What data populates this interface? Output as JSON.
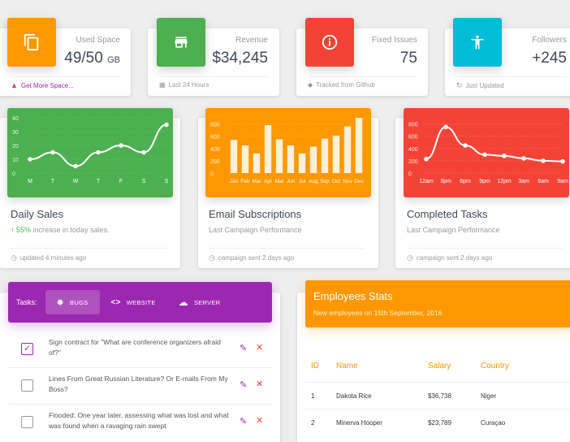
{
  "stats": [
    {
      "category": "Used Space",
      "value": "49/50",
      "unit": "GB",
      "footer": "Get More Space...",
      "footer_icon": "warning-icon",
      "color": "#ff9800"
    },
    {
      "category": "Revenue",
      "value": "$34,245",
      "footer": "Last 24 Hours",
      "footer_icon": "calendar-icon",
      "color": "#4caf50"
    },
    {
      "category": "Fixed Issues",
      "value": "75",
      "footer": "Tracked from Github",
      "footer_icon": "tag-icon",
      "color": "#f44336"
    },
    {
      "category": "Followers",
      "value": "+245",
      "footer": "Just Updated",
      "footer_icon": "refresh-icon",
      "color": "#00bcd4"
    }
  ],
  "charts": {
    "daily": {
      "title": "Daily Sales",
      "increase": "55%",
      "increase_text": " increase in today sales.",
      "footer": "updated 4 minutes ago",
      "color": "#4caf50"
    },
    "email": {
      "title": "Email Subscriptions",
      "category": "Last Campaign Performance",
      "footer": "campaign sent 2 days ago",
      "color": "#ff9800"
    },
    "tasks": {
      "title": "Completed Tasks",
      "category": "Last Campaign Performance",
      "footer": "campaign sent 2 days ago",
      "color": "#f44336"
    }
  },
  "chart_data": [
    {
      "type": "line",
      "categories": [
        "M",
        "T",
        "W",
        "T",
        "F",
        "S",
        "S"
      ],
      "values": [
        10,
        15,
        5,
        15,
        20,
        15,
        35
      ],
      "ylim": [
        0,
        40
      ],
      "yticks": [
        0,
        10,
        20,
        30,
        40
      ]
    },
    {
      "type": "bar",
      "categories": [
        "Jan",
        "Feb",
        "Mar",
        "Apr",
        "Mai",
        "Jun",
        "Jul",
        "Aug",
        "Sep",
        "Oct",
        "Nov",
        "Dec"
      ],
      "values": [
        540,
        450,
        320,
        780,
        550,
        450,
        320,
        430,
        560,
        610,
        760,
        900
      ],
      "ylim": [
        0,
        900
      ],
      "yticks": [
        0,
        200,
        400,
        600,
        800
      ]
    },
    {
      "type": "line",
      "categories": [
        "12am",
        "3pm",
        "6pm",
        "9pm",
        "12pm",
        "3am",
        "6am",
        "9am"
      ],
      "values": [
        230,
        750,
        450,
        300,
        280,
        240,
        200,
        190
      ],
      "ylim": [
        0,
        900
      ],
      "yticks": [
        0,
        200,
        400,
        600,
        800
      ]
    }
  ],
  "tasks": {
    "label": "Tasks:",
    "tabs": [
      {
        "label": "Bugs",
        "icon": "bug-icon"
      },
      {
        "label": "Website",
        "icon": "code-icon"
      },
      {
        "label": "Server",
        "icon": "cloud-icon"
      }
    ],
    "items": [
      {
        "text": "Sign contract for \"What are conference organizers afraid of?\"",
        "checked": true
      },
      {
        "text": "Lines From Great Russian Literature? Or E-mails From My Boss?",
        "checked": false
      },
      {
        "text": "Flooded: One year later, assessing what was lost and what was found when a ravaging rain swept",
        "checked": false
      }
    ]
  },
  "employees": {
    "title": "Employees Stats",
    "subtitle": "New employees on 15th September, 2016",
    "columns": [
      "ID",
      "Name",
      "Salary",
      "Country"
    ],
    "rows": [
      [
        "1",
        "Dakota Rice",
        "$36,738",
        "Niger"
      ],
      [
        "2",
        "Minerva Hooper",
        "$23,789",
        "Curaçao"
      ]
    ]
  }
}
